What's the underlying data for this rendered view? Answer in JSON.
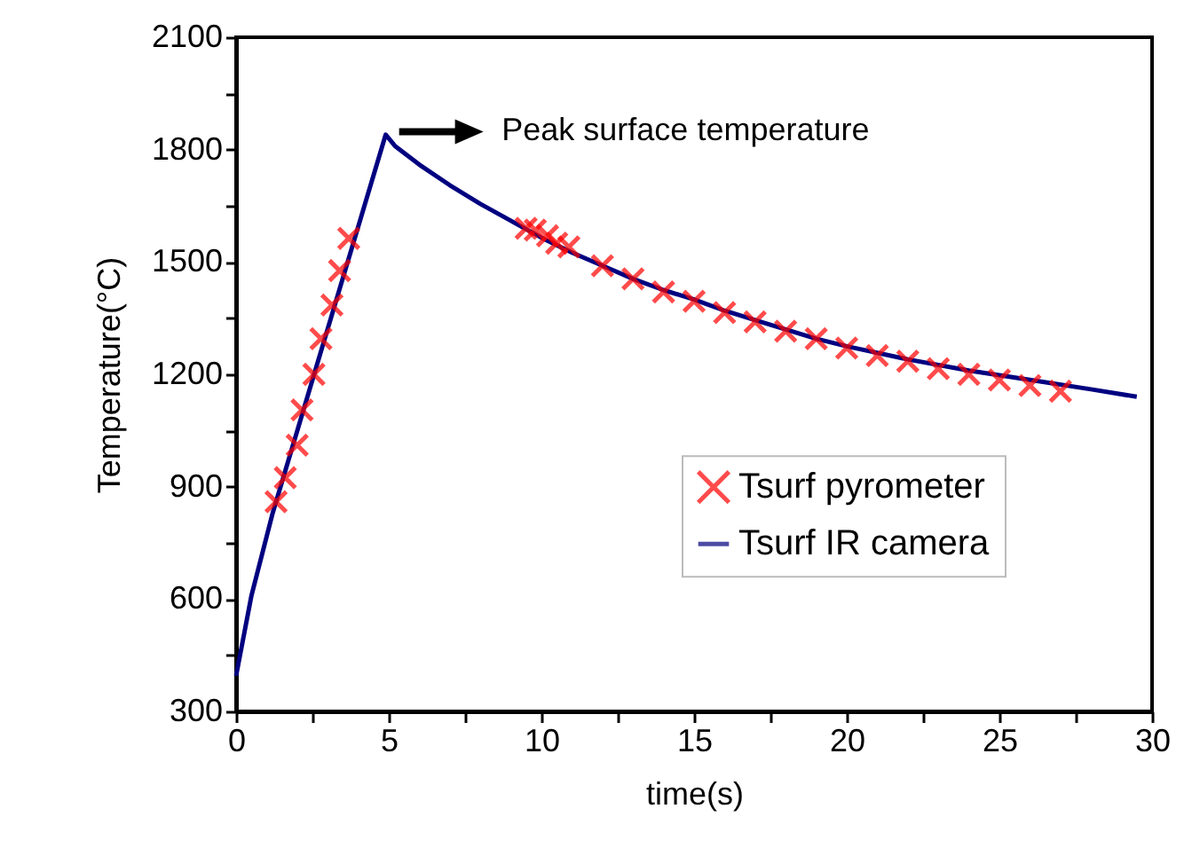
{
  "chart_data": {
    "type": "line",
    "xlabel": "time(s)",
    "ylabel": "Temperature(°C)",
    "xlim": [
      0,
      30
    ],
    "xticks": [
      0,
      {
        "value": 2.5,
        "label": null
      },
      5,
      {
        "value": 7.5,
        "label": null
      },
      10,
      {
        "value": 12.5,
        "label": null
      },
      15,
      {
        "value": 17.5,
        "label": null
      },
      20,
      {
        "value": 22.5,
        "label": null
      },
      25,
      {
        "value": 27.5,
        "label": null
      },
      30
    ],
    "ylim": [
      300,
      2100
    ],
    "yticks": [
      300,
      {
        "value": 450,
        "label": null
      },
      600,
      {
        "value": 750,
        "label": null
      },
      900,
      {
        "value": 1050,
        "label": null
      },
      1200,
      {
        "value": 1350,
        "label": null
      },
      1500,
      {
        "value": 1650,
        "label": null
      },
      1800,
      {
        "value": 1950,
        "label": null
      },
      2100
    ],
    "grid": false,
    "legend": "right",
    "annotations": [
      "Peak surface temperature"
    ],
    "series": [
      {
        "name": "Tsurf pyrometer",
        "type": "scatter",
        "marker": "cross",
        "color": "#ff0000",
        "x": [
          1.31,
          1.61,
          2.0,
          2.16,
          2.55,
          2.78,
          3.14,
          3.39,
          3.69,
          9.5,
          9.8,
          10.2,
          10.5,
          10.9,
          12,
          13,
          14,
          15,
          16,
          17,
          18,
          19,
          20,
          21,
          22,
          23,
          24,
          25,
          26,
          27
        ],
        "values": [
          860,
          924,
          1011,
          1105,
          1200,
          1295,
          1385,
          1477,
          1563,
          1590,
          1585,
          1570,
          1550,
          1540,
          1490,
          1455,
          1420,
          1395,
          1365,
          1340,
          1315,
          1295,
          1270,
          1250,
          1235,
          1215,
          1200,
          1185,
          1170,
          1155
        ]
      },
      {
        "name": "Tsurf IR camera",
        "type": "line",
        "marker": "none",
        "line_style": "solid",
        "color": "#000080",
        "x": [
          0,
          0.5,
          1.2,
          4.9,
          5.2,
          6,
          7,
          8,
          9,
          10,
          11,
          12,
          13,
          14,
          15,
          16,
          17,
          18,
          19,
          20,
          22,
          24,
          26,
          28,
          29.5
        ],
        "values": [
          395,
          608,
          830,
          1840,
          1810,
          1760,
          1705,
          1655,
          1610,
          1565,
          1525,
          1490,
          1455,
          1425,
          1400,
          1370,
          1345,
          1320,
          1295,
          1275,
          1240,
          1210,
          1185,
          1160,
          1140
        ]
      }
    ]
  }
}
